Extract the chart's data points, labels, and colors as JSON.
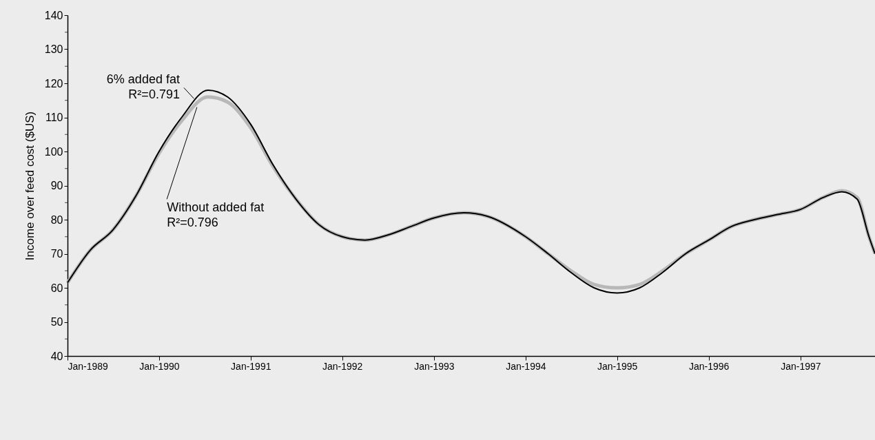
{
  "chart_data": {
    "type": "line",
    "ylabel": "Income over feed cost ($US)",
    "xlim": [
      "1989-01-01",
      "1997-10-25"
    ],
    "xticks": [
      {
        "value": "1989-01-01",
        "label": "Jan-1989"
      },
      {
        "value": "1990-01-01",
        "label": "Jan-1990"
      },
      {
        "value": "1991-01-01",
        "label": "Jan-1991"
      },
      {
        "value": "1992-01-01",
        "label": "Jan-1992"
      },
      {
        "value": "1993-01-01",
        "label": "Jan-1993"
      },
      {
        "value": "1994-01-01",
        "label": "Jan-1994"
      },
      {
        "value": "1995-01-01",
        "label": "Jan-1995"
      },
      {
        "value": "1996-01-01",
        "label": "Jan-1996"
      },
      {
        "value": "1997-01-01",
        "label": "Jan-1997"
      }
    ],
    "ylim": [
      40,
      140
    ],
    "yticks": [
      40,
      {
        "value": 45,
        "label": null
      },
      50,
      {
        "value": 55,
        "label": null
      },
      60,
      {
        "value": 65,
        "label": null
      },
      70,
      {
        "value": 75,
        "label": null
      },
      80,
      {
        "value": 85,
        "label": null
      },
      90,
      {
        "value": 95,
        "label": null
      },
      100,
      {
        "value": 105,
        "label": null
      },
      110,
      {
        "value": 115,
        "label": null
      },
      120,
      {
        "value": 125,
        "label": null
      },
      130,
      {
        "value": 135,
        "label": null
      },
      140
    ],
    "x": [
      "1989-01-01",
      "1989-04-01",
      "1989-07-01",
      "1989-10-01",
      "1990-01-01",
      "1990-04-01",
      "1990-07-15",
      "1990-10-01",
      "1991-01-01",
      "1991-04-01",
      "1991-07-01",
      "1991-10-01",
      "1992-01-01",
      "1992-04-01",
      "1992-07-01",
      "1992-10-01",
      "1993-01-01",
      "1993-05-01",
      "1993-08-01",
      "1994-01-01",
      "1994-04-01",
      "1994-07-01",
      "1994-10-01",
      "1995-01-01",
      "1995-04-01",
      "1995-07-01",
      "1995-10-01",
      "1996-01-01",
      "1996-04-01",
      "1996-07-01",
      "1996-10-01",
      "1997-01-01",
      "1997-04-01",
      "1997-06-15",
      "1997-08-15",
      "1997-10-01",
      "1997-10-25"
    ],
    "series": [
      {
        "color": "#b8b8b8",
        "values": [
          61.5,
          71,
          77,
          87,
          99.5,
          109,
          116,
          114.5,
          107,
          95.5,
          86,
          78.5,
          75,
          74,
          75.5,
          78,
          80.5,
          82,
          81,
          75,
          70,
          65,
          61,
          60,
          61,
          65,
          70,
          74,
          78,
          80,
          81.5,
          83,
          86.5,
          88.5,
          86.5,
          75,
          70
        ]
      },
      {
        "color": "#000000",
        "values": [
          61.5,
          71,
          77,
          87,
          100,
          110,
          118,
          116,
          108,
          96,
          86,
          78.5,
          75,
          74,
          75.5,
          78,
          80.5,
          82,
          81,
          75,
          70,
          64.5,
          60,
          58.5,
          60,
          64.5,
          70,
          74,
          78,
          80,
          81.5,
          83,
          86.5,
          88.2,
          86,
          75,
          70
        ]
      }
    ],
    "annotations": [
      {
        "text": "6% added fat\nR²=0.791",
        "x": "1990-05-20",
        "y": 115.5
      },
      {
        "text": "Without added fat\nR²=0.796",
        "x": "1990-06-01",
        "y": 113
      }
    ],
    "legend": false,
    "grid": false
  }
}
